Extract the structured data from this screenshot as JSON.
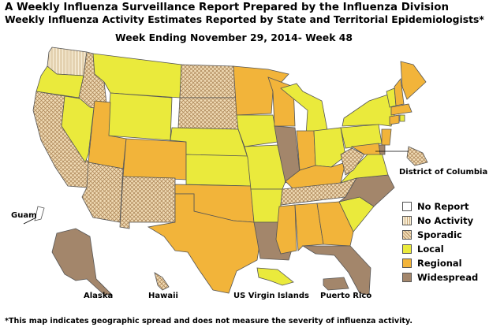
{
  "title": "A Weekly Influenza Surveillance Report Prepared by the Influenza Division",
  "subtitle": "Weekly Influenza Activity Estimates Reported by State and Territorial Epidemiologists*",
  "week": "Week Ending November 29, 2014- Week 48",
  "footnote": "*This map indicates geographic spread and does not measure the severity of influenza activity.",
  "labels": {
    "dc": "District of Columbia",
    "guam": "Guam",
    "alaska": "Alaska",
    "hawaii": "Hawaii",
    "usvi": "US Virgin Islands",
    "pr": "Puerto Rico"
  },
  "legend": [
    {
      "key": "no_report",
      "label": "No Report",
      "color": "#ffffff"
    },
    {
      "key": "no_activity",
      "label": "No Activity",
      "color": "#f3e6c8"
    },
    {
      "key": "sporadic",
      "label": "Sporadic",
      "color": "#e8d0a8"
    },
    {
      "key": "local",
      "label": "Local",
      "color": "#eaea3c"
    },
    {
      "key": "regional",
      "label": "Regional",
      "color": "#f2b43a"
    },
    {
      "key": "widespread",
      "label": "Widespread",
      "color": "#a3866b"
    }
  ],
  "activity": {
    "WA": "no_activity",
    "OR": "local",
    "CA": "sporadic",
    "NV": "local",
    "ID": "sporadic",
    "MT": "local",
    "WY": "local",
    "UT": "regional",
    "AZ": "sporadic",
    "CO": "regional",
    "NM": "sporadic",
    "ND": "sporadic",
    "SD": "sporadic",
    "NE": "local",
    "KS": "local",
    "OK": "regional",
    "TX": "regional",
    "MN": "regional",
    "IA": "local",
    "MO": "local",
    "AR": "local",
    "LA": "widespread",
    "WI": "regional",
    "IL": "widespread",
    "MI": "local",
    "IN": "regional",
    "OH": "local",
    "KY": "regional",
    "TN": "sporadic",
    "MS": "regional",
    "AL": "regional",
    "GA": "regional",
    "FL": "widespread",
    "SC": "local",
    "NC": "widespread",
    "VA": "local",
    "WV": "sporadic",
    "PA": "local",
    "NY": "local",
    "VT": "local",
    "NH": "regional",
    "ME": "regional",
    "MA": "regional",
    "CT": "regional",
    "RI": "local",
    "NJ": "regional",
    "DE": "widespread",
    "MD": "regional",
    "DC": "sporadic",
    "AK": "widespread",
    "HI": "sporadic",
    "GU": "no_report",
    "VI": "local",
    "PR": "widespread"
  }
}
